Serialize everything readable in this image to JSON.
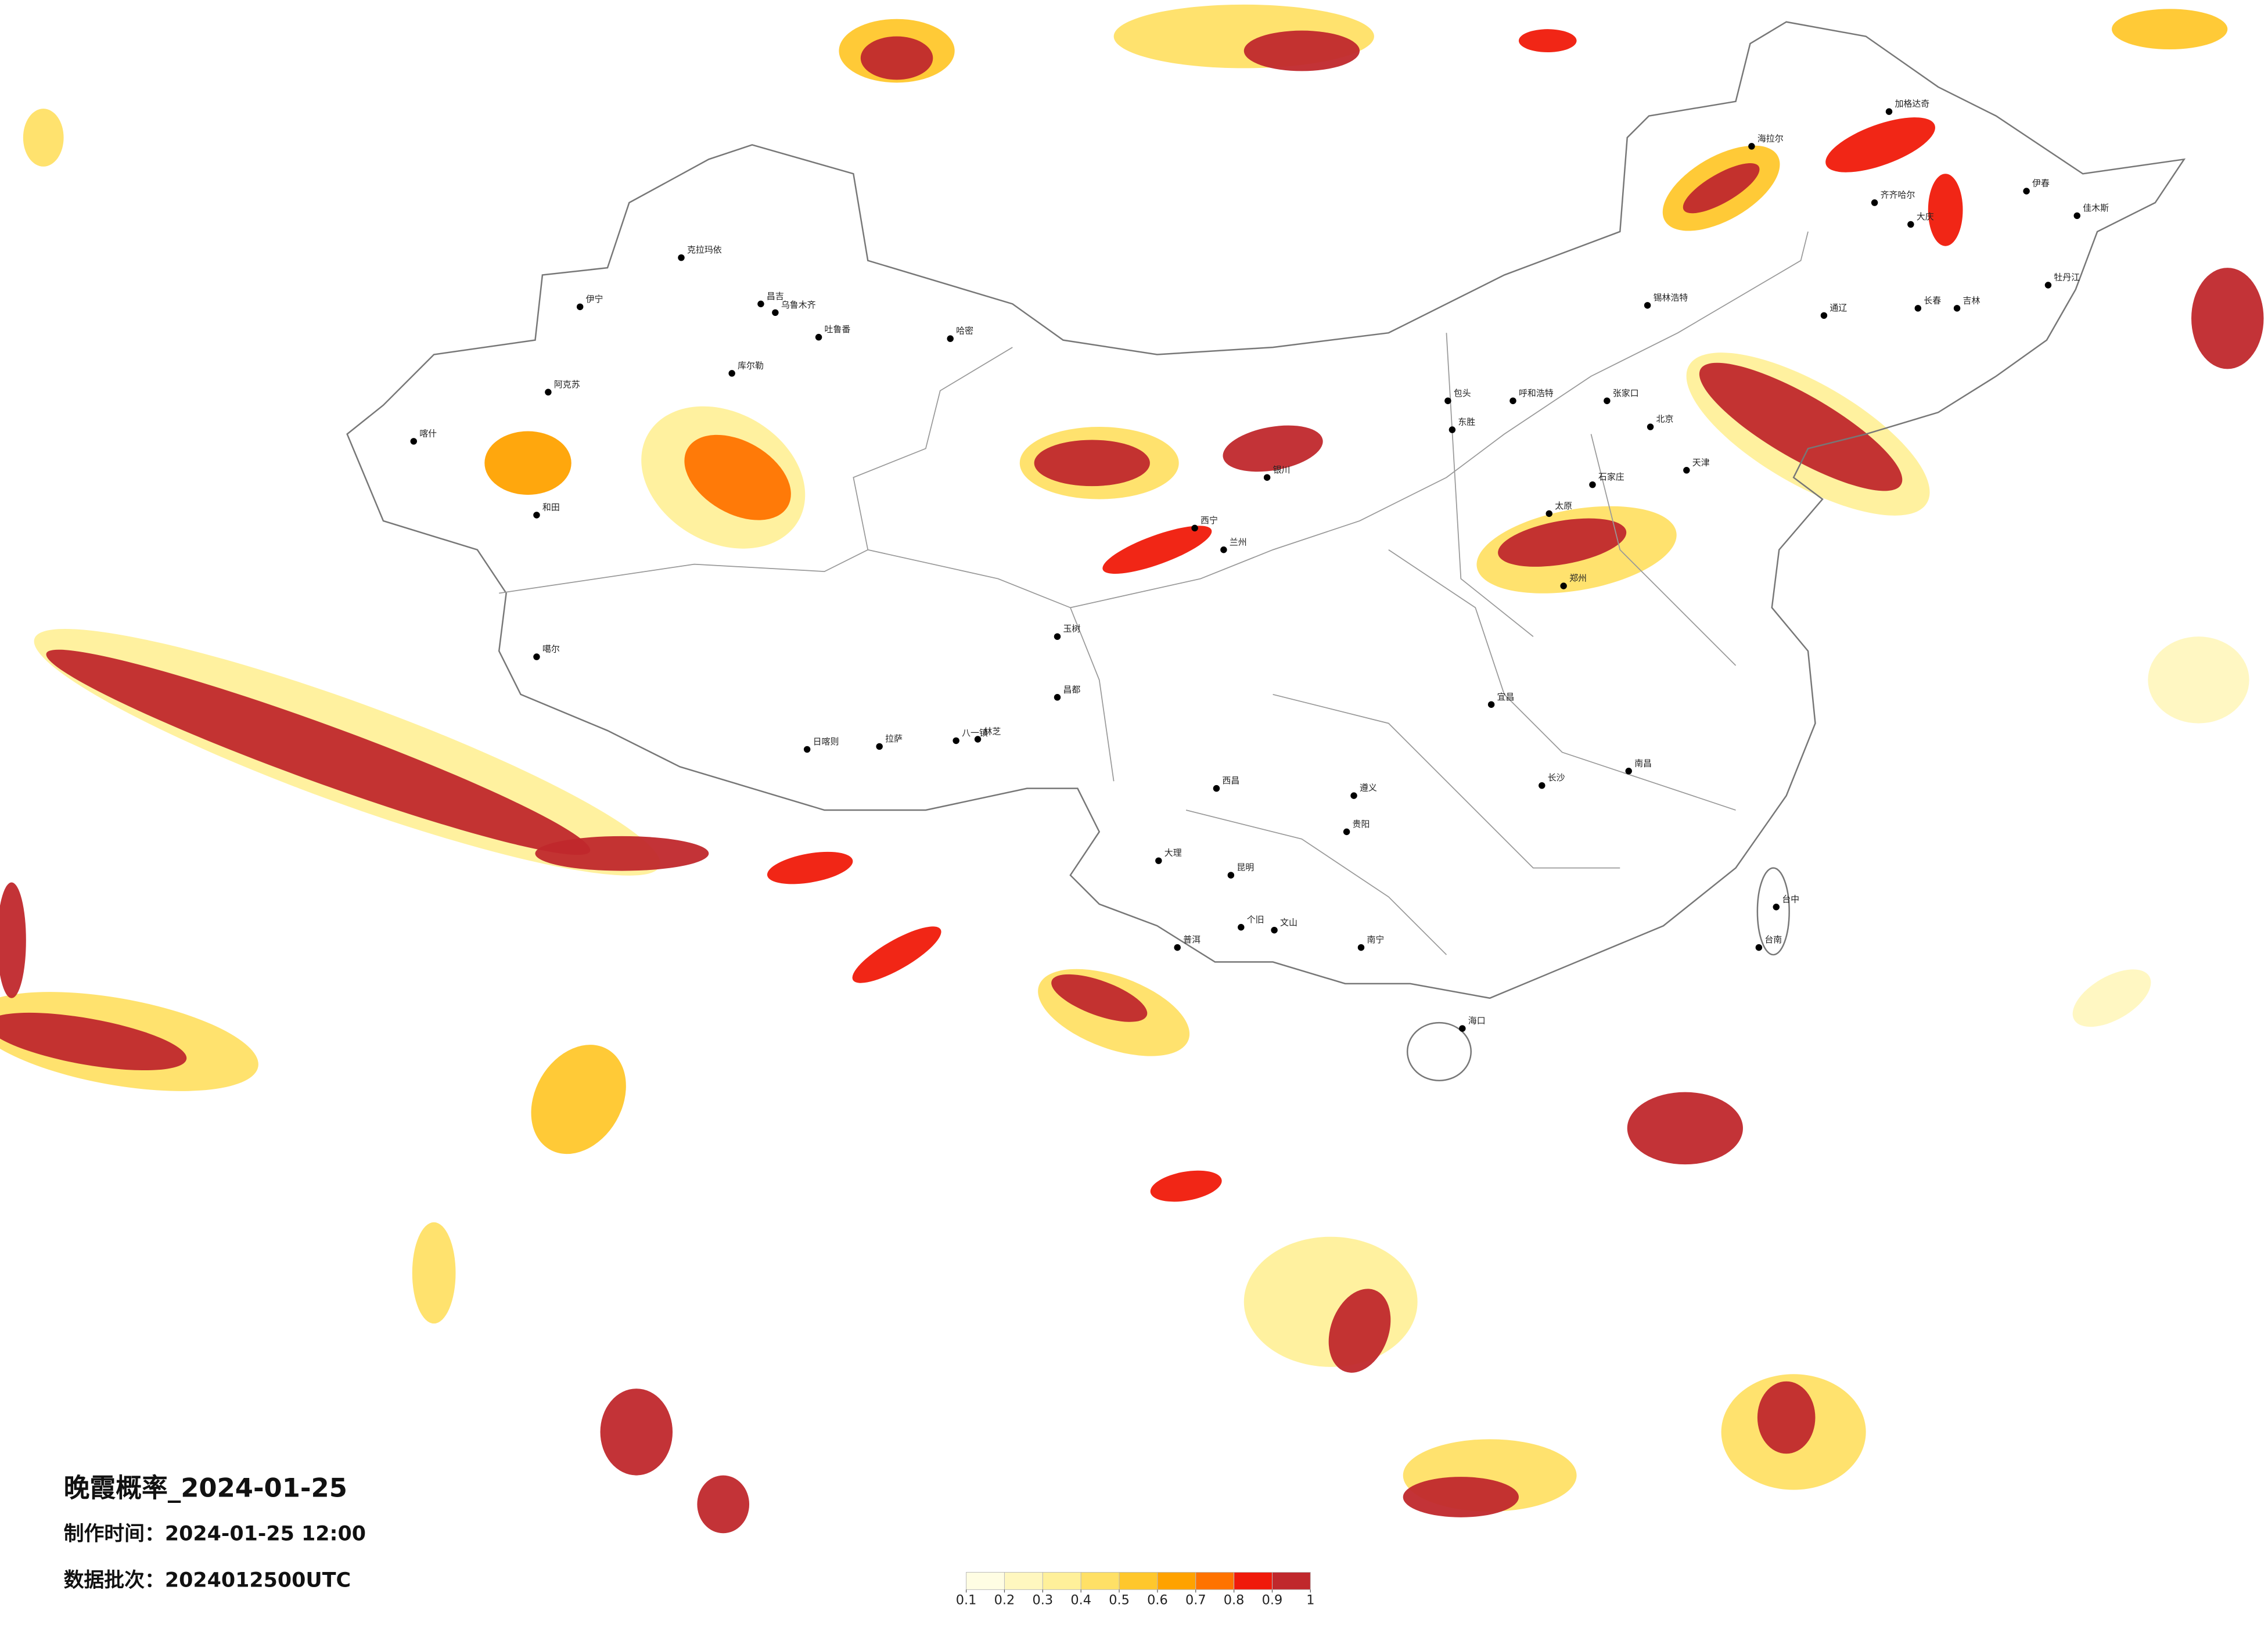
{
  "title": "晚霞概率_2024-01-25",
  "production_time": "制作时间：2024-01-25 12:00",
  "data_batch": "数据批次：2024012500UTC",
  "colorbar": {
    "ticks": [
      0.1,
      0.2,
      0.3,
      0.4,
      0.5,
      0.6,
      0.7,
      0.8,
      0.9,
      1
    ],
    "colors": [
      "#fffde3",
      "#fff7bf",
      "#fff09a",
      "#ffe066",
      "#ffc72c",
      "#ffa200",
      "#ff7300",
      "#f01a0a",
      "#c0282c"
    ]
  },
  "cities": [
    "克拉玛依",
    "伊宁",
    "昌吉",
    "乌鲁木齐",
    "吐鲁番",
    "哈密",
    "库尔勒",
    "阿克苏",
    "喀什",
    "和田",
    "噶尔",
    "日喀则",
    "拉萨",
    "八一镇",
    "林芝",
    "昌都",
    "玉树",
    "西宁",
    "兰州",
    "银川",
    "包头",
    "东胜",
    "呼和浩特",
    "张家口",
    "北京",
    "天津",
    "石家庄",
    "太原",
    "郑州",
    "锡林浩特",
    "海拉尔",
    "加格达奇",
    "齐齐哈尔",
    "大庆",
    "伊春",
    "佳木斯",
    "牡丹江",
    "通辽",
    "长春",
    "吉林",
    "宜昌",
    "长沙",
    "南昌",
    "遵义",
    "贵阳",
    "西昌",
    "大理",
    "昆明",
    "个旧",
    "文山",
    "普洱",
    "南宁",
    "海口",
    "台中",
    "台南"
  ]
}
